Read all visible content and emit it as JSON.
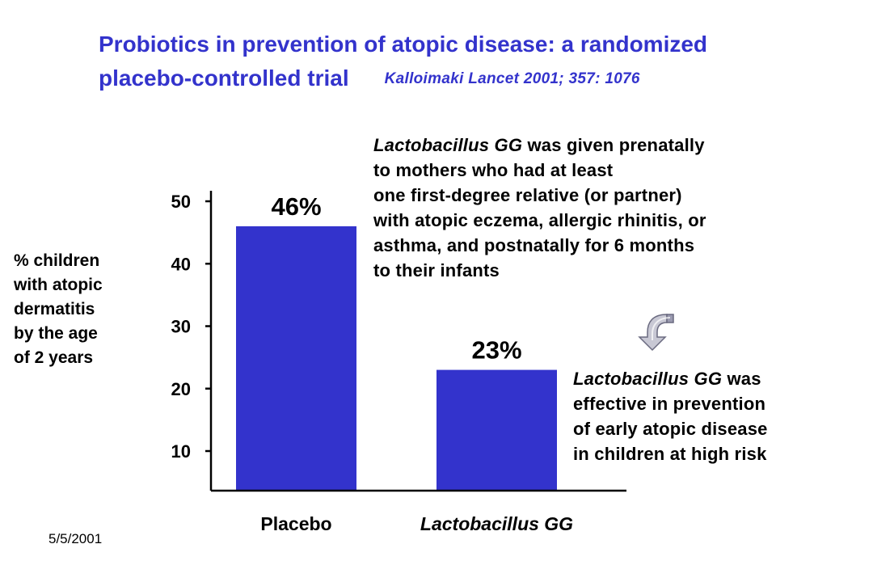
{
  "title": {
    "line1": "Probiotics in prevention of atopic disease: a randomized",
    "line2": "placebo-controlled trial",
    "citation": "Kalloimaki  Lancet 2001; 357: 1076"
  },
  "ylabel_lines": [
    "% children",
    "with atopic",
    "dermatitis",
    "by the age",
    "of 2 years"
  ],
  "note_top": {
    "italic": "Lactobacillus GG",
    "rest": " was given prenatally",
    "lines": [
      "to mothers who had at least",
      "one first-degree relative (or partner)",
      "with atopic eczema, allergic rhinitis, or",
      "asthma, and postnatally for 6 months",
      "to their infants"
    ]
  },
  "note_bottom": {
    "italic": "Lactobacillus GG",
    "rest": " was",
    "lines": [
      "effective in prevention",
      "of early atopic disease",
      "in children at high risk"
    ]
  },
  "footer": {
    "date": "5/5/2001"
  },
  "icons": {
    "arrow": "curved-down-arrow-icon"
  },
  "colors": {
    "bar": "#3333cc",
    "title": "#3333cc",
    "text": "#000000"
  },
  "chart_data": {
    "type": "bar",
    "categories": [
      "Placebo",
      "Lactobacillus GG"
    ],
    "category_italic": [
      false,
      true
    ],
    "values": [
      46,
      23
    ],
    "data_labels": [
      "46%",
      "23%"
    ],
    "yticks": [
      10,
      20,
      30,
      40,
      50
    ],
    "ylim": [
      4,
      50
    ],
    "ylabel": "% children with atopic dermatitis by the age of 2 years",
    "grid": false
  }
}
